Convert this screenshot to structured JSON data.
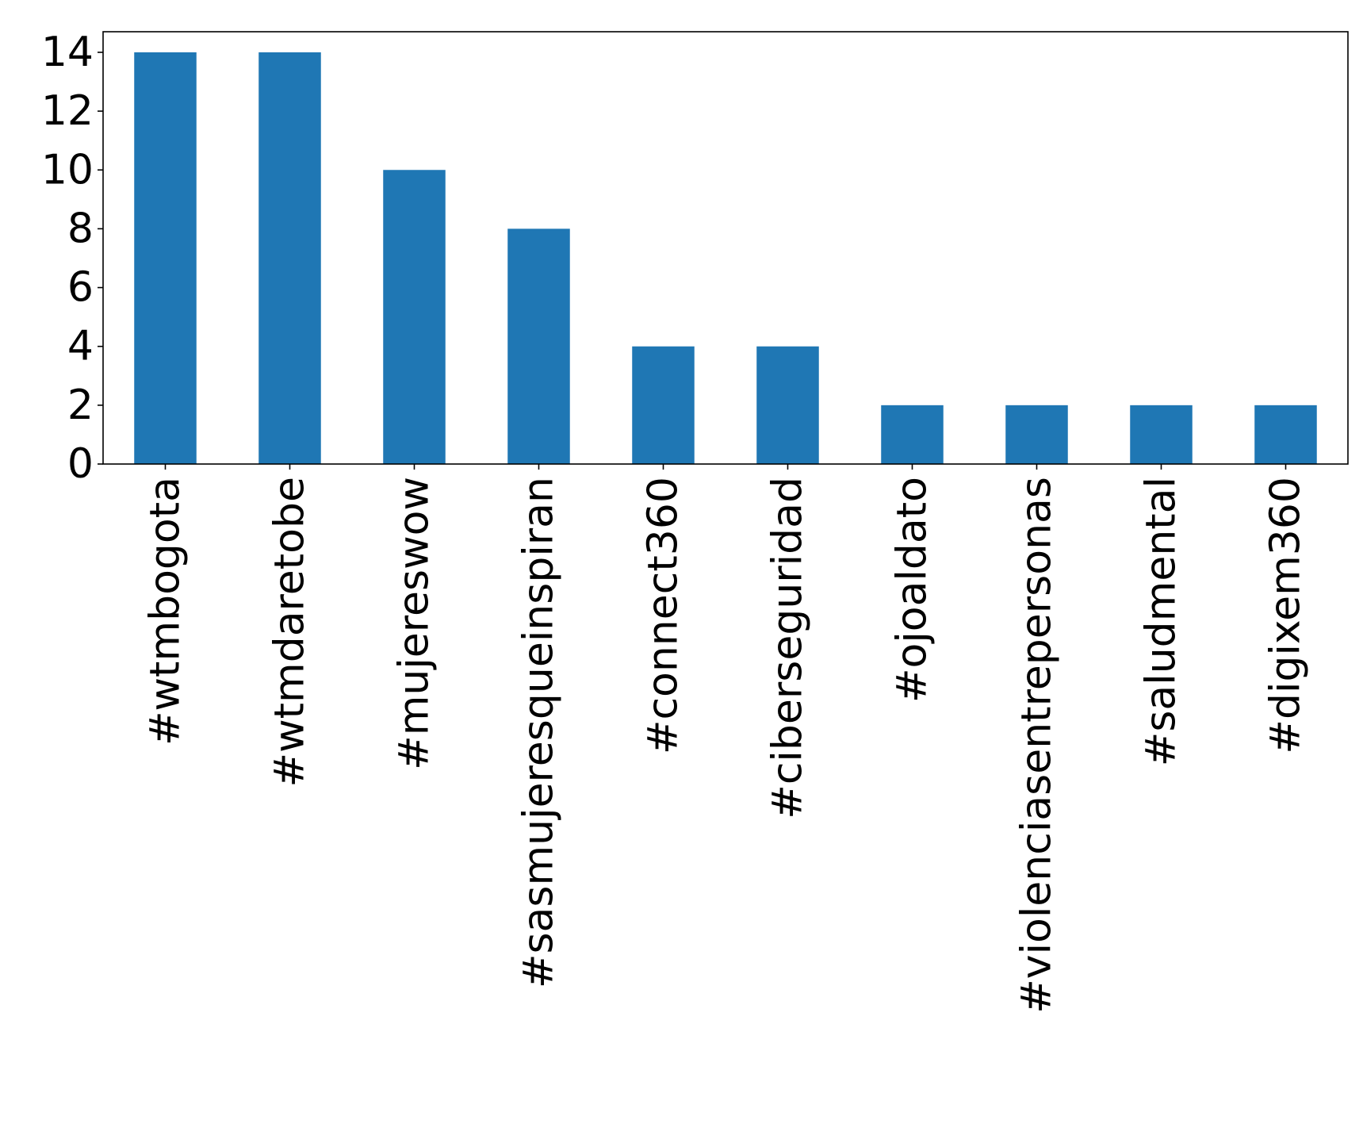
{
  "chart_data": {
    "type": "bar",
    "categories": [
      "#wtmbogota",
      "#wtmdaretobe",
      "#mujereswow",
      "#sasmujeresqueinspiran",
      "#connect360",
      "#ciberseguridad",
      "#ojoaldato",
      "#violenciasentrepersonas",
      "#saludmental",
      "#digixem360"
    ],
    "values": [
      14,
      14,
      10,
      8,
      4,
      4,
      2,
      2,
      2,
      2
    ],
    "yticks": [
      "0",
      "2",
      "4",
      "6",
      "8",
      "10",
      "12",
      "14"
    ],
    "ylim": [
      0,
      14.7
    ],
    "grid": false,
    "legend": "none",
    "bar_color": "#1f77b4",
    "axis_color": "#000000",
    "background": "#ffffff"
  }
}
